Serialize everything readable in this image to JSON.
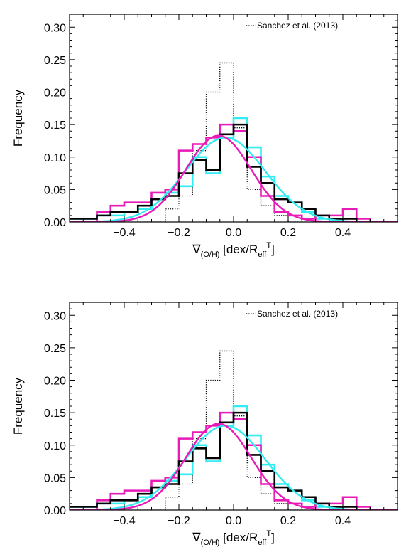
{
  "colors": {
    "cyan": "#33ecf2",
    "magenta": "#e81ab8",
    "black": "#000000"
  },
  "chart_data": [
    {
      "type": "line",
      "xlim": [
        -0.6,
        0.6
      ],
      "ylim": [
        0.0,
        0.32
      ],
      "xticks": [
        -0.4,
        -0.2,
        0.0,
        0.2,
        0.4
      ],
      "xticks_labels": [
        "−0.4",
        "−0.2",
        "0.0",
        "0.2",
        "0.4"
      ],
      "yticks": [
        0.0,
        0.05,
        0.1,
        0.15,
        0.2,
        0.25,
        0.3
      ],
      "yticks_labels": [
        "0.00",
        "0.05",
        "0.10",
        "0.15",
        "0.20",
        "0.25",
        "0.30"
      ],
      "xlabel": {
        "nabla": "∇",
        "sub": "(O/H)",
        "mid": " [dex/R",
        "sub2": "eff",
        "sup": "T",
        "end": "]"
      },
      "ylabel": "Frequency",
      "legend_label": "Sanchez et al. (2013)",
      "legend_position": "top-right",
      "bin_edges": [
        -0.6,
        -0.55,
        -0.5,
        -0.45,
        -0.4,
        -0.35,
        -0.3,
        -0.25,
        -0.2,
        -0.15,
        -0.1,
        -0.05,
        0.0,
        0.05,
        0.1,
        0.15,
        0.2,
        0.25,
        0.3,
        0.35,
        0.4,
        0.45,
        0.5,
        0.55,
        0.6
      ],
      "series": [
        {
          "color": "#000000",
          "style": "dotted",
          "values": [
            0,
            0,
            0,
            0,
            0,
            0,
            0,
            0.02,
            0.04,
            0.11,
            0.2,
            0.245,
            0.145,
            0.05,
            0.025,
            0.01,
            0,
            0,
            0,
            0,
            0,
            0,
            0,
            0
          ]
        },
        {
          "color": "#33ecf2",
          "style": "solid",
          "values": [
            0.005,
            0.005,
            0.01,
            0.01,
            0.015,
            0.02,
            0.035,
            0.045,
            0.055,
            0.1,
            0.075,
            0.13,
            0.16,
            0.115,
            0.07,
            0.04,
            0.03,
            0.015,
            0.005,
            0.005,
            0,
            0,
            0,
            0
          ]
        },
        {
          "color": "#e81ab8",
          "style": "solid",
          "values": [
            0,
            0,
            0.015,
            0.025,
            0.03,
            0.03,
            0.045,
            0.05,
            0.11,
            0.12,
            0.13,
            0.15,
            0.14,
            0.1,
            0.04,
            0.015,
            0.01,
            0.005,
            0.01,
            0.01,
            0.02,
            0.005,
            0,
            0
          ]
        },
        {
          "color": "#000000",
          "style": "solid",
          "values": [
            0.005,
            0.005,
            0.01,
            0.015,
            0.015,
            0.025,
            0.035,
            0.04,
            0.075,
            0.095,
            0.08,
            0.135,
            0.15,
            0.085,
            0.06,
            0.035,
            0.03,
            0.02,
            0.01,
            0.005,
            0.005,
            0,
            0,
            0
          ]
        }
      ],
      "fits": [
        {
          "color": "#33ecf2",
          "mean": -0.03,
          "sigma": 0.145,
          "peak": 0.13
        },
        {
          "color": "#e81ab8",
          "mean": -0.055,
          "sigma": 0.12,
          "peak": 0.133
        }
      ]
    },
    {
      "type": "line",
      "xlim": [
        -0.6,
        0.6
      ],
      "ylim": [
        0.0,
        0.32
      ],
      "xticks": [
        -0.4,
        -0.2,
        0.0,
        0.2,
        0.4
      ],
      "xticks_labels": [
        "−0.4",
        "−0.2",
        "0.0",
        "0.2",
        "0.4"
      ],
      "yticks": [
        0.0,
        0.05,
        0.1,
        0.15,
        0.2,
        0.25,
        0.3
      ],
      "yticks_labels": [
        "0.00",
        "0.05",
        "0.10",
        "0.15",
        "0.20",
        "0.25",
        "0.30"
      ],
      "xlabel": {
        "nabla": "∇",
        "sub": "(O/H)",
        "mid": " [dex/R",
        "sub2": "eff",
        "sup": "T",
        "end": "]"
      },
      "ylabel": "Frequency",
      "legend_label": "Sanchez et al. (2013)",
      "legend_position": "top-right",
      "bin_edges": [
        -0.6,
        -0.55,
        -0.5,
        -0.45,
        -0.4,
        -0.35,
        -0.3,
        -0.25,
        -0.2,
        -0.15,
        -0.1,
        -0.05,
        0.0,
        0.05,
        0.1,
        0.15,
        0.2,
        0.25,
        0.3,
        0.35,
        0.4,
        0.45,
        0.5,
        0.55,
        0.6
      ],
      "series": [
        {
          "color": "#000000",
          "style": "dotted",
          "values": [
            0,
            0,
            0,
            0,
            0,
            0,
            0,
            0.02,
            0.04,
            0.11,
            0.2,
            0.245,
            0.145,
            0.05,
            0.025,
            0.01,
            0,
            0,
            0,
            0,
            0,
            0,
            0,
            0
          ]
        },
        {
          "color": "#33ecf2",
          "style": "solid",
          "values": [
            0.005,
            0.005,
            0.01,
            0.01,
            0.015,
            0.02,
            0.035,
            0.045,
            0.055,
            0.1,
            0.075,
            0.13,
            0.16,
            0.115,
            0.07,
            0.04,
            0.03,
            0.015,
            0.005,
            0.005,
            0,
            0,
            0,
            0
          ]
        },
        {
          "color": "#e81ab8",
          "style": "solid",
          "values": [
            0,
            0,
            0.015,
            0.025,
            0.03,
            0.03,
            0.045,
            0.05,
            0.11,
            0.12,
            0.13,
            0.15,
            0.14,
            0.1,
            0.04,
            0.015,
            0.01,
            0.005,
            0.01,
            0.01,
            0.02,
            0.005,
            0,
            0
          ]
        },
        {
          "color": "#000000",
          "style": "solid",
          "values": [
            0.005,
            0.005,
            0.01,
            0.015,
            0.015,
            0.025,
            0.035,
            0.04,
            0.075,
            0.095,
            0.08,
            0.135,
            0.15,
            0.085,
            0.06,
            0.035,
            0.03,
            0.02,
            0.01,
            0.005,
            0.005,
            0,
            0,
            0
          ]
        }
      ],
      "fits": [
        {
          "color": "#33ecf2",
          "mean": -0.03,
          "sigma": 0.145,
          "peak": 0.13
        },
        {
          "color": "#e81ab8",
          "mean": -0.055,
          "sigma": 0.12,
          "peak": 0.133
        }
      ]
    }
  ]
}
